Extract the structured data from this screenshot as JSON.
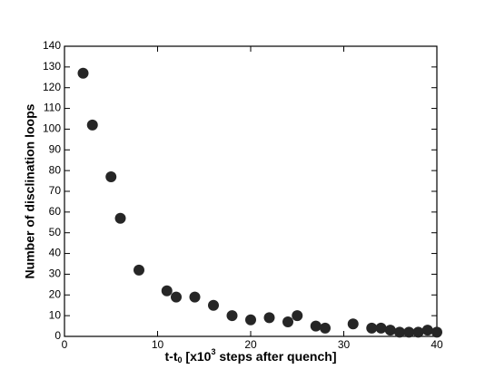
{
  "chart_data": {
    "type": "scatter",
    "x_label_parts": [
      "t-t",
      "0",
      " [x10",
      "3",
      " steps after quench]"
    ],
    "y_label": "Number of disclination loops",
    "x": [
      2,
      3,
      5,
      6,
      8,
      11,
      12,
      14,
      16,
      18,
      20,
      22,
      24,
      25,
      27,
      28,
      31,
      33,
      34,
      35,
      36,
      37,
      38,
      39,
      40
    ],
    "values": [
      127,
      102,
      77,
      57,
      32,
      22,
      19,
      19,
      15,
      10,
      8,
      9,
      7,
      10,
      5,
      4,
      6,
      4,
      4,
      3,
      2,
      2,
      2,
      3,
      2
    ],
    "color": "#262626",
    "xlim": [
      0,
      40
    ],
    "xticks": [
      0,
      10,
      20,
      30,
      40
    ],
    "ylim": [
      0,
      140
    ],
    "yticks": [
      0,
      10,
      20,
      30,
      40,
      50,
      60,
      70,
      80,
      90,
      100,
      110,
      120,
      130,
      140
    ]
  }
}
